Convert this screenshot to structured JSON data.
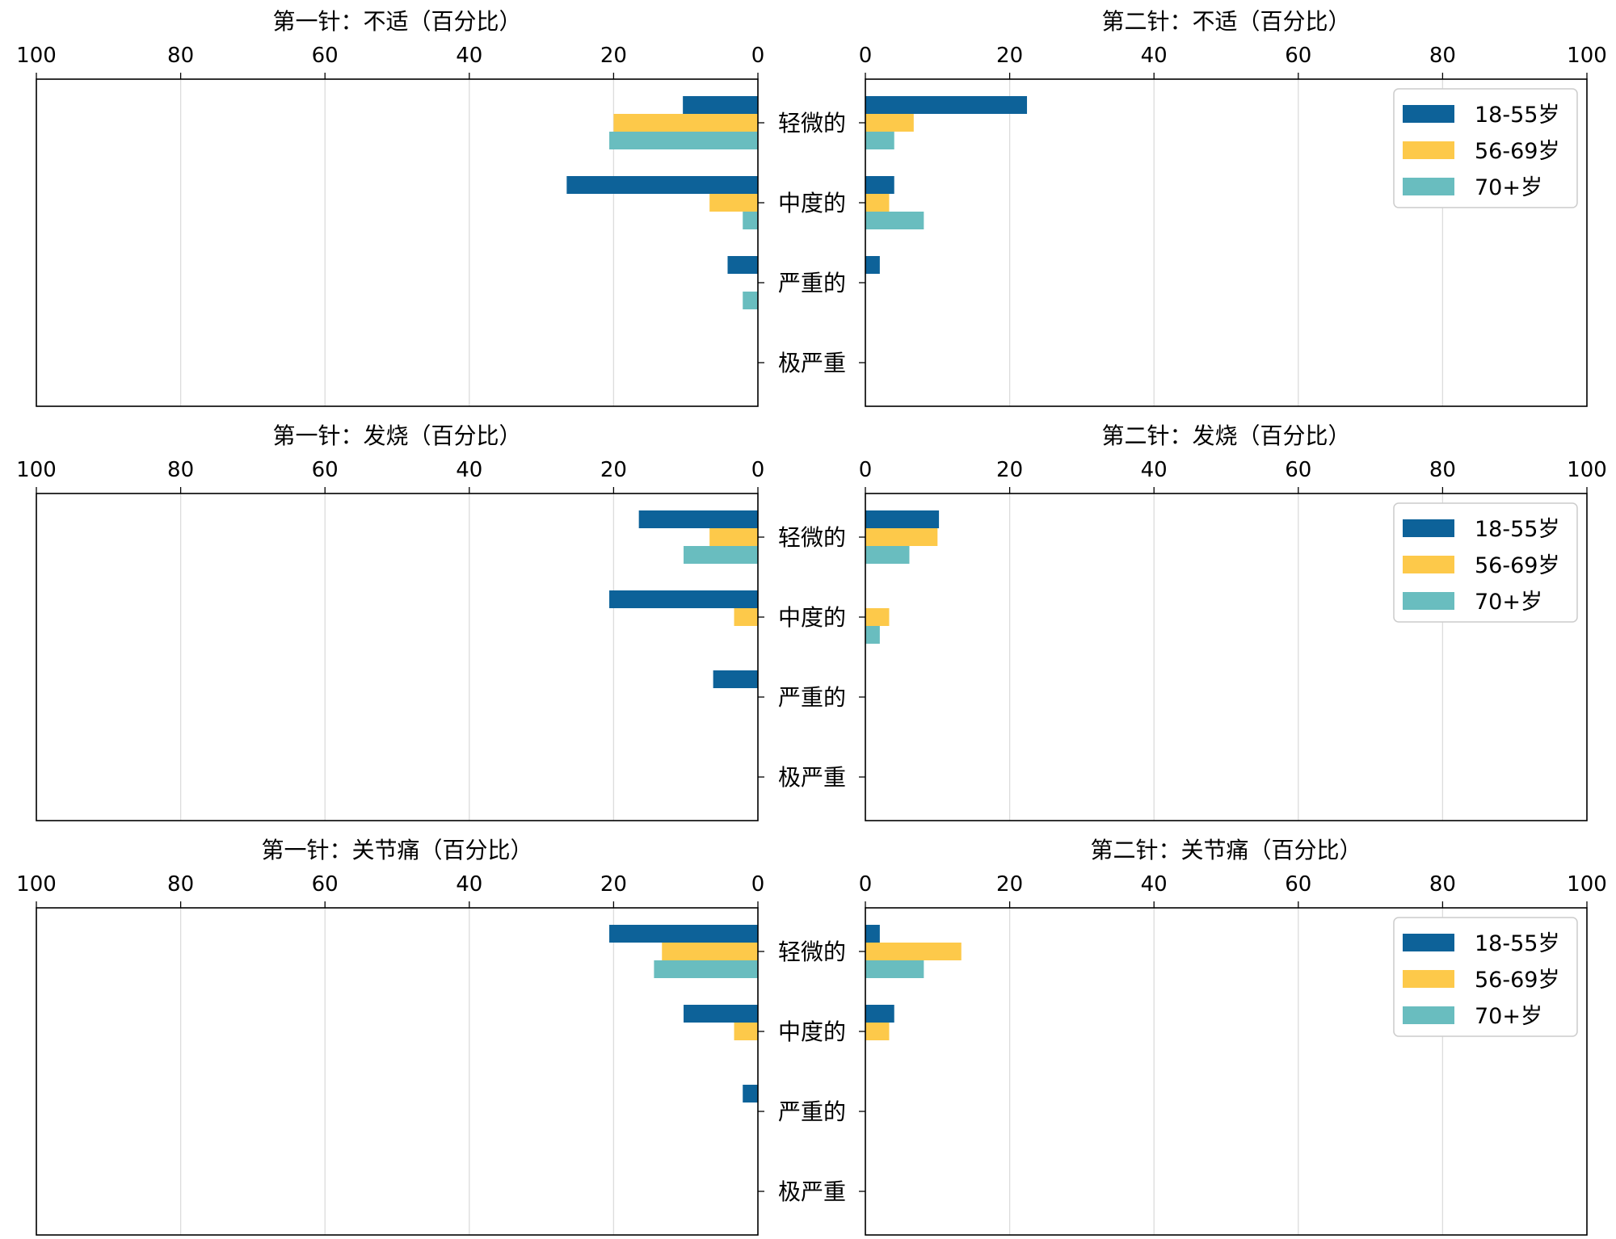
{
  "chart_data": {
    "type": "bar",
    "orientation": "horizontal",
    "layout": "3 rows x 2 columns (left panels mirrored)",
    "categories": [
      "轻微的",
      "中度的",
      "严重的",
      "极严重"
    ],
    "series_names": [
      "18-55岁",
      "56-69岁",
      "70+岁"
    ],
    "colors": [
      "#0d6299",
      "#fdc94a",
      "#69bdbf"
    ],
    "xlim": [
      0,
      100
    ],
    "xticks": [
      "0",
      "20",
      "40",
      "60",
      "80",
      "100"
    ],
    "grid": "vertical",
    "legend_position": "upper right (right-hand panels)",
    "panels": [
      {
        "title": "第一针：不适（百分比）",
        "mirrored": true,
        "legend": false,
        "series": [
          {
            "name": "18-55岁",
            "values": [
              10.4,
              26.5,
              4.2,
              0
            ]
          },
          {
            "name": "56-69岁",
            "values": [
              20.0,
              6.7,
              0,
              0
            ]
          },
          {
            "name": "70+岁",
            "values": [
              20.6,
              2.1,
              2.1,
              0
            ]
          }
        ]
      },
      {
        "title": "第二针：不适（百分比）",
        "mirrored": false,
        "legend": true,
        "series": [
          {
            "name": "18-55岁",
            "values": [
              22.4,
              4.0,
              2.0,
              0
            ]
          },
          {
            "name": "56-69岁",
            "values": [
              6.7,
              3.3,
              0,
              0
            ]
          },
          {
            "name": "70+岁",
            "values": [
              4.0,
              8.1,
              0,
              0
            ]
          }
        ]
      },
      {
        "title": "第一针：发烧（百分比）",
        "mirrored": true,
        "legend": false,
        "series": [
          {
            "name": "18-55岁",
            "values": [
              16.5,
              20.6,
              6.2,
              0
            ]
          },
          {
            "name": "56-69岁",
            "values": [
              6.7,
              3.3,
              0,
              0
            ]
          },
          {
            "name": "70+岁",
            "values": [
              10.3,
              0,
              0,
              0
            ]
          }
        ]
      },
      {
        "title": "第二针：发烧（百分比）",
        "mirrored": false,
        "legend": true,
        "series": [
          {
            "name": "18-55岁",
            "values": [
              10.2,
              0,
              0,
              0
            ]
          },
          {
            "name": "56-69岁",
            "values": [
              10.0,
              3.3,
              0,
              0
            ]
          },
          {
            "name": "70+岁",
            "values": [
              6.1,
              2.0,
              0,
              0
            ]
          }
        ]
      },
      {
        "title": "第一针：关节痛（百分比）",
        "mirrored": true,
        "legend": false,
        "series": [
          {
            "name": "18-55岁",
            "values": [
              20.6,
              10.3,
              2.1,
              0
            ]
          },
          {
            "name": "56-69岁",
            "values": [
              13.3,
              3.3,
              0,
              0
            ]
          },
          {
            "name": "70+岁",
            "values": [
              14.4,
              0,
              0,
              0
            ]
          }
        ]
      },
      {
        "title": "第二针：关节痛（百分比）",
        "mirrored": false,
        "legend": true,
        "series": [
          {
            "name": "18-55岁",
            "values": [
              2.0,
              4.0,
              0,
              0
            ]
          },
          {
            "name": "56-69岁",
            "values": [
              13.3,
              3.3,
              0,
              0
            ]
          },
          {
            "name": "70+岁",
            "values": [
              8.1,
              0,
              0,
              0
            ]
          }
        ]
      }
    ]
  }
}
